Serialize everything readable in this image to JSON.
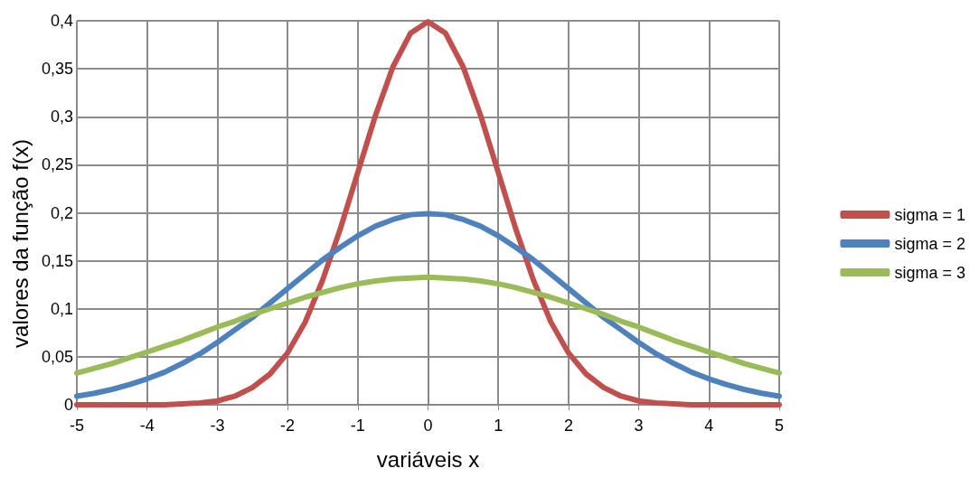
{
  "chart_data": {
    "type": "line",
    "xlabel": "variáveis x",
    "ylabel": "valores da função f(x)",
    "x": [
      -5,
      -4.75,
      -4.5,
      -4.25,
      -4,
      -3.75,
      -3.5,
      -3.25,
      -3,
      -2.75,
      -2.5,
      -2.25,
      -2,
      -1.75,
      -1.5,
      -1.25,
      -1,
      -0.75,
      -0.5,
      -0.25,
      0,
      0.25,
      0.5,
      0.75,
      1,
      1.25,
      1.5,
      1.75,
      2,
      2.25,
      2.5,
      2.75,
      3,
      3.25,
      3.5,
      3.75,
      4,
      4.25,
      4.5,
      4.75,
      5
    ],
    "series": [
      {
        "name": "sigma = 1",
        "color": "#c0504d",
        "values": [
          0,
          0,
          0,
          0,
          0,
          0,
          0.001,
          0.002,
          0.004,
          0.009,
          0.018,
          0.032,
          0.054,
          0.086,
          0.13,
          0.183,
          0.242,
          0.301,
          0.352,
          0.387,
          0.399,
          0.387,
          0.352,
          0.301,
          0.242,
          0.183,
          0.13,
          0.086,
          0.054,
          0.032,
          0.018,
          0.009,
          0.004,
          0.002,
          0.001,
          0,
          0,
          0,
          0,
          0,
          0
        ]
      },
      {
        "name": "sigma = 2",
        "color": "#4f81bd",
        "values": [
          0.009,
          0.012,
          0.016,
          0.021,
          0.027,
          0.034,
          0.043,
          0.053,
          0.065,
          0.078,
          0.091,
          0.106,
          0.121,
          0.136,
          0.151,
          0.164,
          0.176,
          0.186,
          0.193,
          0.198,
          0.199,
          0.198,
          0.193,
          0.186,
          0.176,
          0.164,
          0.151,
          0.136,
          0.121,
          0.106,
          0.091,
          0.078,
          0.065,
          0.053,
          0.043,
          0.034,
          0.027,
          0.021,
          0.016,
          0.012,
          0.009
        ]
      },
      {
        "name": "sigma = 3",
        "color": "#9bbb59",
        "values": [
          0.033,
          0.038,
          0.043,
          0.049,
          0.055,
          0.061,
          0.067,
          0.074,
          0.081,
          0.087,
          0.094,
          0.1,
          0.106,
          0.112,
          0.117,
          0.122,
          0.126,
          0.129,
          0.131,
          0.132,
          0.133,
          0.132,
          0.131,
          0.129,
          0.126,
          0.122,
          0.117,
          0.112,
          0.106,
          0.1,
          0.094,
          0.087,
          0.081,
          0.074,
          0.067,
          0.061,
          0.055,
          0.049,
          0.043,
          0.038,
          0.033
        ]
      }
    ],
    "xlim": [
      -5,
      5
    ],
    "xticks": [
      -5,
      -4,
      -3,
      -2,
      -1,
      0,
      1,
      2,
      3,
      4,
      5
    ],
    "ylim": [
      0,
      0.4
    ],
    "yticks": [
      {
        "value": 0,
        "label": "0"
      },
      {
        "value": 0.05,
        "label": "0,05"
      },
      {
        "value": 0.1,
        "label": "0,1"
      },
      {
        "value": 0.15,
        "label": "0,15"
      },
      {
        "value": 0.2,
        "label": "0,2"
      },
      {
        "value": 0.25,
        "label": "0,25"
      },
      {
        "value": 0.3,
        "label": "0,3"
      },
      {
        "value": 0.35,
        "label": "0,35"
      },
      {
        "value": 0.4,
        "label": "0,4"
      }
    ],
    "grid": true,
    "legend": "right",
    "marker": "none",
    "line_style": "solid"
  }
}
